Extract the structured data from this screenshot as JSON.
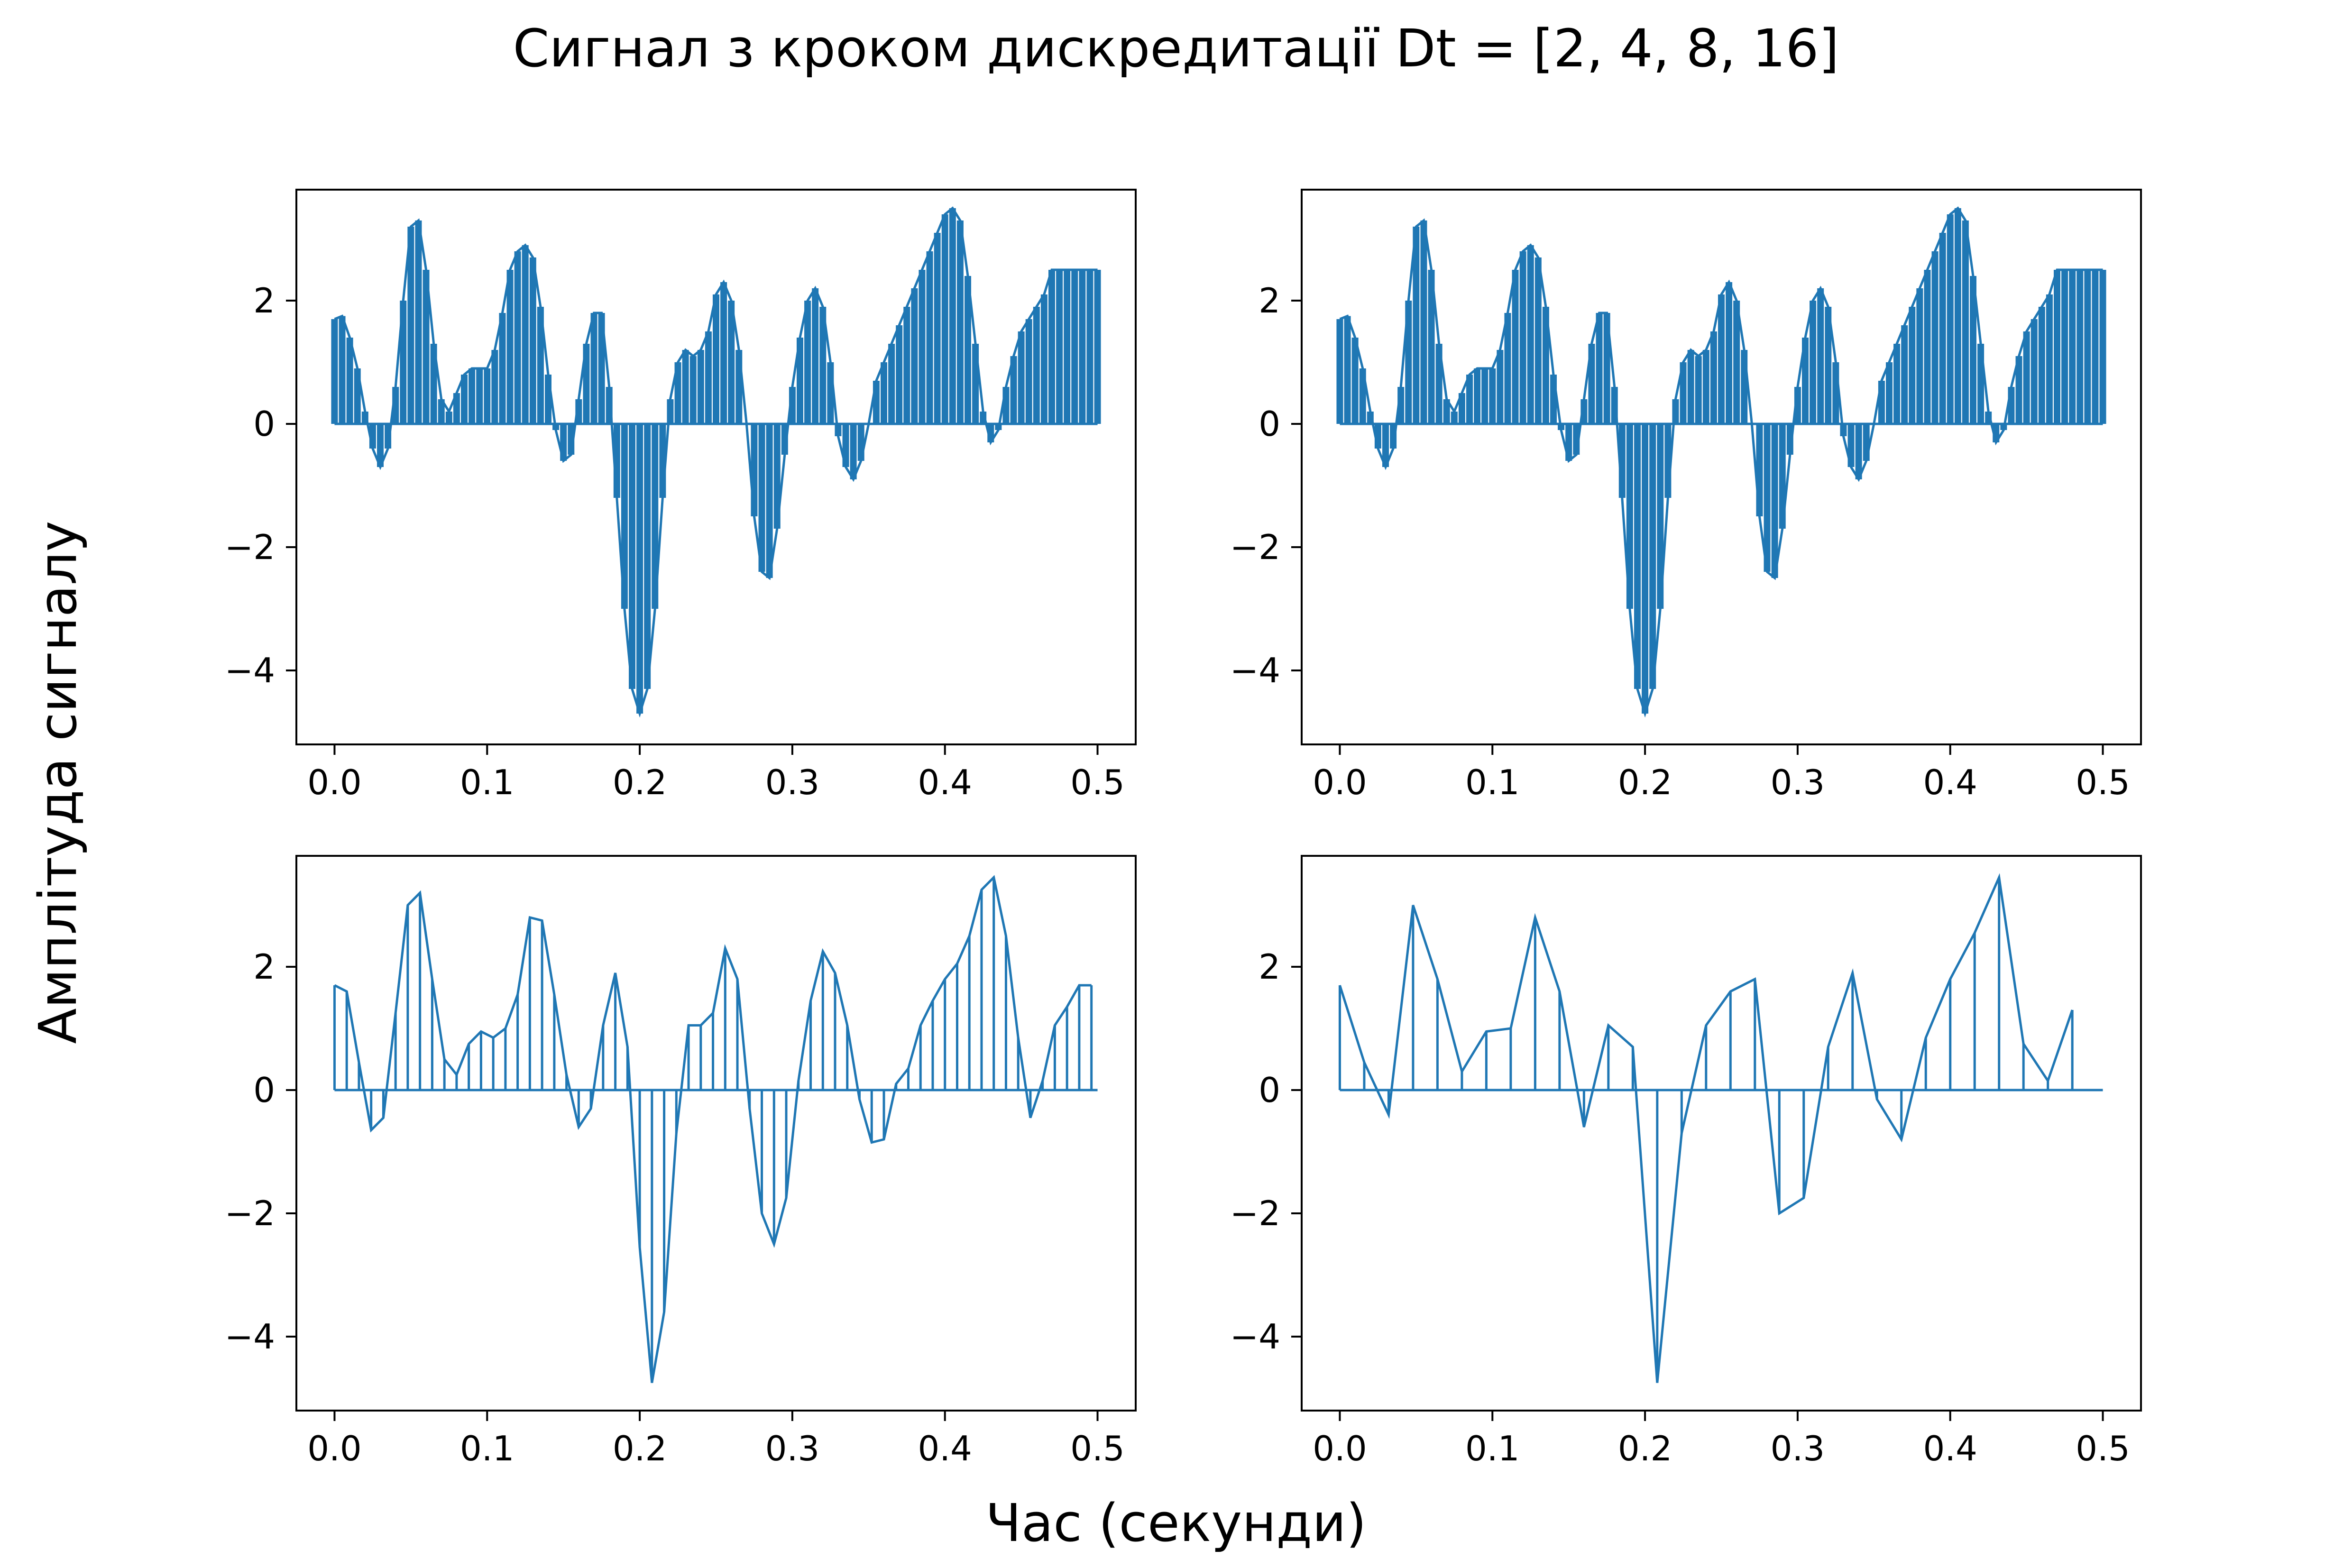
{
  "figure": {
    "title": "Сигнал з кроком дискредитації Dt = [2, 4, 8, 16]",
    "xlabel": "Час (секунди)",
    "ylabel": "Амплітуда сигналу"
  },
  "colors": {
    "series": "#1f77b4",
    "axes": "#000000",
    "background": "#ffffff"
  },
  "chart_data": [
    {
      "type": "line",
      "subplot": "top-left",
      "dt": 2,
      "xlim": [
        0,
        0.5
      ],
      "ylim": [
        -5.2,
        3.8
      ],
      "xticks": [
        "0.0",
        "0.1",
        "0.2",
        "0.3",
        "0.4",
        "0.5"
      ],
      "yticks": [
        "−4",
        "−2",
        "0",
        "2"
      ],
      "grid": false,
      "series": [
        {
          "x": [
            0.0,
            0.005,
            0.01,
            0.015,
            0.02,
            0.025,
            0.03,
            0.035,
            0.04,
            0.045,
            0.05,
            0.055,
            0.06,
            0.065,
            0.07,
            0.075,
            0.08,
            0.085,
            0.09,
            0.095,
            0.1,
            0.105,
            0.11,
            0.115,
            0.12,
            0.125,
            0.13,
            0.135,
            0.14,
            0.145,
            0.15,
            0.155,
            0.16,
            0.165,
            0.17,
            0.175,
            0.18,
            0.185,
            0.19,
            0.195,
            0.2,
            0.205,
            0.21,
            0.215,
            0.22,
            0.225,
            0.23,
            0.235,
            0.24,
            0.245,
            0.25,
            0.255,
            0.26,
            0.265,
            0.27,
            0.275,
            0.28,
            0.285,
            0.29,
            0.295,
            0.3,
            0.305,
            0.31,
            0.315,
            0.32,
            0.325,
            0.33,
            0.335,
            0.34,
            0.345,
            0.35,
            0.355,
            0.36,
            0.365,
            0.37,
            0.375,
            0.38,
            0.385,
            0.39,
            0.395,
            0.4,
            0.405,
            0.41,
            0.415,
            0.42,
            0.425,
            0.43,
            0.435,
            0.44,
            0.445,
            0.45,
            0.455,
            0.46,
            0.465,
            0.47,
            0.475,
            0.48,
            0.485,
            0.49,
            0.495,
            0.5
          ],
          "y": [
            1.7,
            1.75,
            1.4,
            0.9,
            0.2,
            -0.4,
            -0.7,
            -0.4,
            0.6,
            2.0,
            3.2,
            3.3,
            2.5,
            1.3,
            0.4,
            0.2,
            0.5,
            0.8,
            0.9,
            0.9,
            0.9,
            1.2,
            1.8,
            2.5,
            2.8,
            2.9,
            2.7,
            1.9,
            0.8,
            -0.1,
            -0.6,
            -0.5,
            0.4,
            1.3,
            1.8,
            1.8,
            0.6,
            -1.2,
            -3.0,
            -4.3,
            -4.7,
            -4.3,
            -3.0,
            -1.2,
            0.4,
            1.0,
            1.2,
            1.1,
            1.2,
            1.5,
            2.1,
            2.3,
            2.0,
            1.2,
            0.0,
            -1.5,
            -2.4,
            -2.5,
            -1.7,
            -0.5,
            0.6,
            1.4,
            2.0,
            2.2,
            1.9,
            1.0,
            -0.2,
            -0.7,
            -0.9,
            -0.6,
            0.0,
            0.7,
            1.0,
            1.3,
            1.6,
            1.9,
            2.2,
            2.5,
            2.8,
            3.1,
            3.4,
            3.5,
            3.3,
            2.4,
            1.3,
            0.2,
            -0.3,
            -0.1,
            0.6,
            1.1,
            1.5,
            1.7,
            1.9,
            2.1,
            2.5,
            2.5,
            2.5,
            2.5,
            2.5,
            2.5,
            2.5
          ]
        }
      ]
    },
    {
      "type": "line",
      "subplot": "top-right",
      "dt": 4,
      "xlim": [
        0,
        0.5
      ],
      "ylim": [
        -5.2,
        3.8
      ],
      "xticks": [
        "0.0",
        "0.1",
        "0.2",
        "0.3",
        "0.4",
        "0.5"
      ],
      "yticks": [
        "−4",
        "−2",
        "0",
        "2"
      ],
      "grid": false,
      "series": [
        {
          "x": [
            0.0,
            0.005,
            0.01,
            0.015,
            0.02,
            0.025,
            0.03,
            0.035,
            0.04,
            0.045,
            0.05,
            0.055,
            0.06,
            0.065,
            0.07,
            0.075,
            0.08,
            0.085,
            0.09,
            0.095,
            0.1,
            0.105,
            0.11,
            0.115,
            0.12,
            0.125,
            0.13,
            0.135,
            0.14,
            0.145,
            0.15,
            0.155,
            0.16,
            0.165,
            0.17,
            0.175,
            0.18,
            0.185,
            0.19,
            0.195,
            0.2,
            0.205,
            0.21,
            0.215,
            0.22,
            0.225,
            0.23,
            0.235,
            0.24,
            0.245,
            0.25,
            0.255,
            0.26,
            0.265,
            0.27,
            0.275,
            0.28,
            0.285,
            0.29,
            0.295,
            0.3,
            0.305,
            0.31,
            0.315,
            0.32,
            0.325,
            0.33,
            0.335,
            0.34,
            0.345,
            0.35,
            0.355,
            0.36,
            0.365,
            0.37,
            0.375,
            0.38,
            0.385,
            0.39,
            0.395,
            0.4,
            0.405,
            0.41,
            0.415,
            0.42,
            0.425,
            0.43,
            0.435,
            0.44,
            0.445,
            0.45,
            0.455,
            0.46,
            0.465,
            0.47,
            0.475,
            0.48,
            0.485,
            0.49,
            0.495,
            0.5
          ],
          "y": [
            1.7,
            1.75,
            1.4,
            0.9,
            0.2,
            -0.4,
            -0.7,
            -0.4,
            0.6,
            2.0,
            3.2,
            3.3,
            2.5,
            1.3,
            0.4,
            0.2,
            0.5,
            0.8,
            0.9,
            0.9,
            0.9,
            1.2,
            1.8,
            2.5,
            2.8,
            2.9,
            2.7,
            1.9,
            0.8,
            -0.1,
            -0.6,
            -0.5,
            0.4,
            1.3,
            1.8,
            1.8,
            0.6,
            -1.2,
            -3.0,
            -4.3,
            -4.7,
            -4.3,
            -3.0,
            -1.2,
            0.4,
            1.0,
            1.2,
            1.1,
            1.2,
            1.5,
            2.1,
            2.3,
            2.0,
            1.2,
            0.0,
            -1.5,
            -2.4,
            -2.5,
            -1.7,
            -0.5,
            0.6,
            1.4,
            2.0,
            2.2,
            1.9,
            1.0,
            -0.2,
            -0.7,
            -0.9,
            -0.6,
            0.0,
            0.7,
            1.0,
            1.3,
            1.6,
            1.9,
            2.2,
            2.5,
            2.8,
            3.1,
            3.4,
            3.5,
            3.3,
            2.4,
            1.3,
            0.2,
            -0.3,
            -0.1,
            0.6,
            1.1,
            1.5,
            1.7,
            1.9,
            2.1,
            2.5,
            2.5,
            2.5,
            2.5,
            2.5,
            2.5,
            2.5
          ]
        }
      ]
    },
    {
      "type": "line",
      "subplot": "bottom-left",
      "dt": 8,
      "xlim": [
        0,
        0.5
      ],
      "ylim": [
        -5.2,
        3.8
      ],
      "xticks": [
        "0.0",
        "0.1",
        "0.2",
        "0.3",
        "0.4",
        "0.5"
      ],
      "yticks": [
        "−4",
        "−2",
        "0",
        "2"
      ],
      "grid": false,
      "series": [
        {
          "x": [
            0.0,
            0.008,
            0.016,
            0.024,
            0.032,
            0.04,
            0.048,
            0.056,
            0.064,
            0.072,
            0.08,
            0.088,
            0.096,
            0.104,
            0.112,
            0.12,
            0.128,
            0.136,
            0.144,
            0.152,
            0.16,
            0.168,
            0.176,
            0.184,
            0.192,
            0.2,
            0.208,
            0.216,
            0.224,
            0.232,
            0.24,
            0.248,
            0.256,
            0.264,
            0.272,
            0.28,
            0.288,
            0.296,
            0.304,
            0.312,
            0.32,
            0.328,
            0.336,
            0.344,
            0.352,
            0.36,
            0.368,
            0.376,
            0.384,
            0.392,
            0.4,
            0.408,
            0.416,
            0.424,
            0.432,
            0.44,
            0.448,
            0.456,
            0.464,
            0.472,
            0.48,
            0.488,
            0.496
          ],
          "y": [
            1.7,
            1.6,
            0.45,
            -0.65,
            -0.45,
            1.25,
            3.0,
            3.2,
            1.8,
            0.5,
            0.25,
            0.75,
            0.95,
            0.85,
            1.0,
            1.55,
            2.8,
            2.75,
            1.55,
            0.25,
            -0.6,
            -0.3,
            1.05,
            1.9,
            0.7,
            -2.55,
            -4.75,
            -3.6,
            -0.7,
            1.05,
            1.05,
            1.25,
            2.3,
            1.8,
            -0.3,
            -2.0,
            -2.5,
            -1.75,
            0.15,
            1.45,
            2.25,
            1.9,
            1.05,
            -0.15,
            -0.85,
            -0.8,
            0.1,
            0.35,
            1.05,
            1.45,
            1.8,
            2.05,
            2.5,
            3.25,
            3.45,
            2.5,
            0.85,
            -0.45,
            0.15,
            1.05,
            1.35,
            1.7,
            1.7
          ]
        }
      ]
    },
    {
      "type": "line",
      "subplot": "bottom-right",
      "dt": 16,
      "xlim": [
        0,
        0.5
      ],
      "ylim": [
        -5.2,
        3.8
      ],
      "xticks": [
        "0.0",
        "0.1",
        "0.2",
        "0.3",
        "0.4",
        "0.5"
      ],
      "yticks": [
        "−4",
        "−2",
        "0",
        "2"
      ],
      "grid": false,
      "series": [
        {
          "x": [
            0.0,
            0.016,
            0.032,
            0.048,
            0.064,
            0.08,
            0.096,
            0.112,
            0.128,
            0.144,
            0.16,
            0.176,
            0.192,
            0.208,
            0.224,
            0.24,
            0.256,
            0.272,
            0.288,
            0.304,
            0.32,
            0.336,
            0.352,
            0.368,
            0.384,
            0.4,
            0.416,
            0.432,
            0.448,
            0.464,
            0.48
          ],
          "y": [
            1.7,
            0.45,
            -0.4,
            3.0,
            1.8,
            0.3,
            0.95,
            1.0,
            2.8,
            1.6,
            -0.6,
            1.05,
            0.7,
            -4.75,
            -0.7,
            1.05,
            1.6,
            1.8,
            -2.0,
            -1.75,
            0.7,
            1.9,
            -0.15,
            -0.8,
            0.85,
            1.8,
            2.55,
            3.45,
            0.75,
            0.15,
            1.3
          ]
        }
      ]
    }
  ]
}
